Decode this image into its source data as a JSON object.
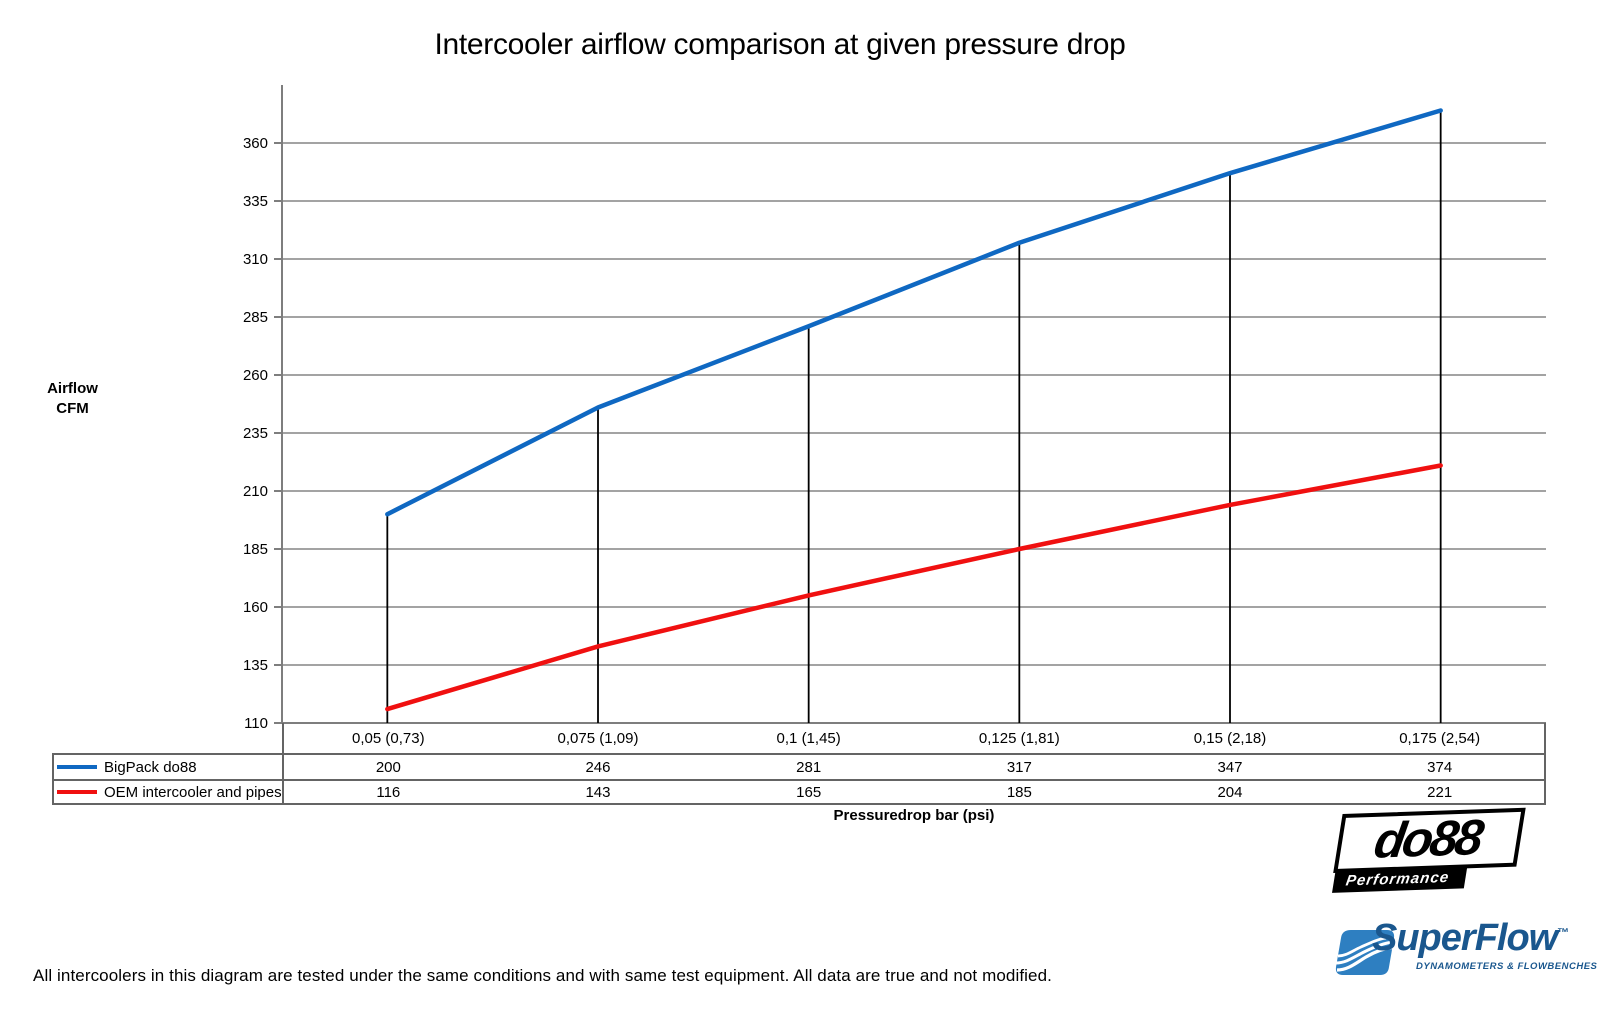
{
  "title": "Intercooler airflow comparison at given pressure drop",
  "chart_data": {
    "type": "line",
    "title": "Intercooler airflow comparison at given pressure drop",
    "categories": [
      "0,05 (0,73)",
      "0,075 (1,09)",
      "0,1 (1,45)",
      "0,125 (1,81)",
      "0,15 (2,18)",
      "0,175 (2,54)"
    ],
    "series": [
      {
        "name": "BigPack do88",
        "color": "#0F68C2",
        "values": [
          200,
          246,
          281,
          317,
          347,
          374
        ]
      },
      {
        "name": "OEM intercooler and pipes",
        "color": "#F01010",
        "values": [
          116,
          143,
          165,
          185,
          204,
          221
        ]
      }
    ],
    "xlabel": "Pressuredrop bar (psi)",
    "ylabel": "Airflow CFM",
    "ylabel_lines": [
      "Airflow",
      "CFM"
    ],
    "yticks": [
      110,
      135,
      160,
      185,
      210,
      235,
      260,
      285,
      310,
      335,
      360
    ],
    "ylim": [
      110,
      385
    ],
    "grid": true,
    "droplines": true,
    "legend_position": "table-left",
    "gridline_color": "#A3A3A3",
    "axis_color": "#7E7E7E",
    "dropline_color": "#000000"
  },
  "footer": {
    "disclaimer": "All intercoolers in this diagram are tested under the same conditions and with same test equipment. All data are true and not modified."
  },
  "logos": {
    "do88": {
      "text": "do88",
      "subtitle": "Performance"
    },
    "superflow": {
      "text": "SuperFlow",
      "tm": "™",
      "subtitle": "DYNAMOMETERS & FLOWBENCHES"
    }
  }
}
